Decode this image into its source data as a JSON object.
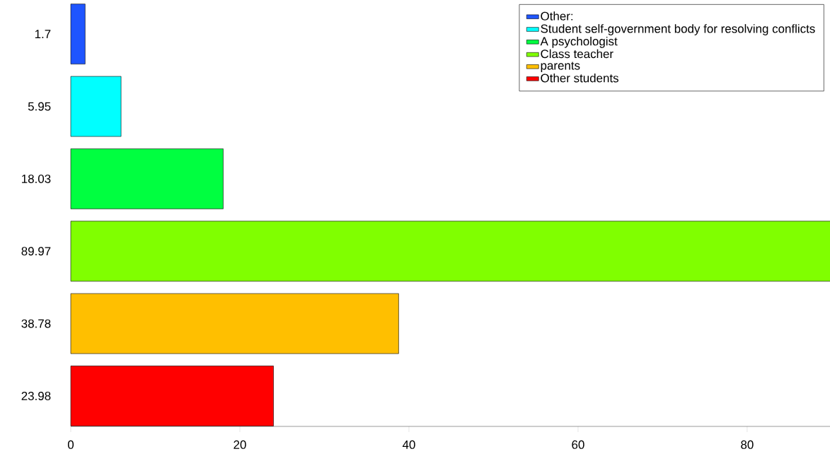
{
  "chart_data": {
    "type": "bar",
    "orientation": "horizontal",
    "categories": [
      "1.7",
      "5.95",
      "18.03",
      "89.97",
      "38.78",
      "23.98"
    ],
    "series": [
      {
        "name": "Other:",
        "color": "#1f55ff",
        "values": [
          1.7,
          null,
          null,
          null,
          null,
          null
        ]
      },
      {
        "name": "Student self-government body for resolving conflicts",
        "color": "#00ffff",
        "values": [
          null,
          5.95,
          null,
          null,
          null,
          null
        ]
      },
      {
        "name": "A psychologist",
        "color": "#00ff40",
        "values": [
          null,
          null,
          18.03,
          null,
          null,
          null
        ]
      },
      {
        "name": "Class teacher",
        "color": "#80ff00",
        "values": [
          null,
          null,
          null,
          89.97,
          null,
          null
        ]
      },
      {
        "name": "parents",
        "color": "#ffbf00",
        "values": [
          null,
          null,
          null,
          null,
          38.78,
          null
        ]
      },
      {
        "name": "Other students",
        "color": "#ff0000",
        "values": [
          null,
          null,
          null,
          null,
          null,
          23.98
        ]
      }
    ],
    "xlim": [
      0,
      90
    ],
    "xticks": [
      0,
      20,
      40,
      60,
      80
    ],
    "legend": "top right"
  }
}
